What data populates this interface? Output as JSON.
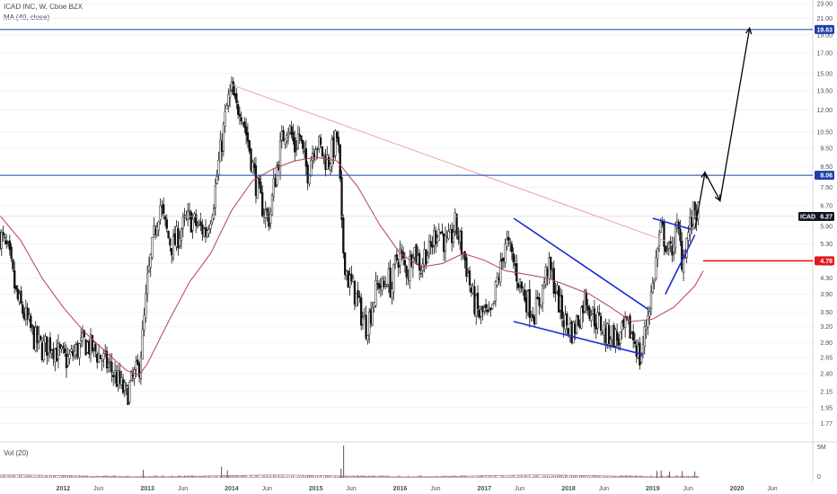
{
  "header": {
    "symbol_line": "ICAD INC, W, Cboe BZX",
    "ma_line": "MA (40, close)",
    "volume_line": "Vol (20)"
  },
  "chart_data": {
    "type": "candlestick",
    "title": "ICAD INC, W, Cboe BZX",
    "y_scale": "log",
    "ylim": [
      1.6,
      23.5
    ],
    "x_range": [
      2011.25,
      2020.9
    ],
    "y_ticks": [
      "23.00",
      "21.00",
      "19.00",
      "17.00",
      "15.00",
      "13.50",
      "12.00",
      "10.50",
      "9.50",
      "8.50",
      "7.50",
      "6.70",
      "5.90",
      "5.30",
      "4.70",
      "4.30",
      "3.90",
      "3.50",
      "3.20",
      "2.90",
      "2.65",
      "2.40",
      "2.15",
      "1.95",
      "1.77"
    ],
    "x_ticks": [
      {
        "label": "2012",
        "x": 2012.0,
        "year": true
      },
      {
        "label": "Jun",
        "x": 2012.42,
        "year": false
      },
      {
        "label": "2013",
        "x": 2013.0,
        "year": true
      },
      {
        "label": "Jun",
        "x": 2013.42,
        "year": false
      },
      {
        "label": "2014",
        "x": 2014.0,
        "year": true
      },
      {
        "label": "Jun",
        "x": 2014.42,
        "year": false
      },
      {
        "label": "2015",
        "x": 2015.0,
        "year": true
      },
      {
        "label": "Jun",
        "x": 2015.42,
        "year": false
      },
      {
        "label": "2016",
        "x": 2016.0,
        "year": true
      },
      {
        "label": "Jun",
        "x": 2016.42,
        "year": false
      },
      {
        "label": "2017",
        "x": 2017.0,
        "year": true
      },
      {
        "label": "Jun",
        "x": 2017.42,
        "year": false
      },
      {
        "label": "2018",
        "x": 2018.0,
        "year": true
      },
      {
        "label": "Jun",
        "x": 2018.42,
        "year": false
      },
      {
        "label": "2019",
        "x": 2019.0,
        "year": true
      },
      {
        "label": "Jun",
        "x": 2019.42,
        "year": false
      },
      {
        "label": "2020",
        "x": 2020.0,
        "year": true
      },
      {
        "label": "Jun",
        "x": 2020.42,
        "year": false
      }
    ],
    "price_path": [
      [
        2011.25,
        5.6
      ],
      [
        2011.35,
        5.0
      ],
      [
        2011.45,
        3.8
      ],
      [
        2011.55,
        3.4
      ],
      [
        2011.65,
        3.0
      ],
      [
        2011.75,
        2.8
      ],
      [
        2011.85,
        2.9
      ],
      [
        2011.95,
        2.7
      ],
      [
        2012.05,
        2.6
      ],
      [
        2012.15,
        2.75
      ],
      [
        2012.25,
        2.9
      ],
      [
        2012.35,
        2.8
      ],
      [
        2012.45,
        2.65
      ],
      [
        2012.55,
        2.5
      ],
      [
        2012.65,
        2.3
      ],
      [
        2012.75,
        2.1
      ],
      [
        2012.8,
        2.25
      ],
      [
        2012.9,
        2.5
      ],
      [
        2012.95,
        3.1
      ],
      [
        2013.0,
        4.2
      ],
      [
        2013.05,
        5.0
      ],
      [
        2013.1,
        6.0
      ],
      [
        2013.15,
        6.8
      ],
      [
        2013.2,
        6.0
      ],
      [
        2013.25,
        5.5
      ],
      [
        2013.3,
        5.2
      ],
      [
        2013.4,
        5.8
      ],
      [
        2013.5,
        6.2
      ],
      [
        2013.6,
        5.9
      ],
      [
        2013.7,
        5.7
      ],
      [
        2013.75,
        6.4
      ],
      [
        2013.8,
        7.2
      ],
      [
        2013.85,
        8.8
      ],
      [
        2013.9,
        10.5
      ],
      [
        2013.95,
        12.5
      ],
      [
        2014.0,
        13.5
      ],
      [
        2014.05,
        12.0
      ],
      [
        2014.1,
        12.5
      ],
      [
        2014.15,
        11.0
      ],
      [
        2014.2,
        9.8
      ],
      [
        2014.25,
        8.5
      ],
      [
        2014.3,
        7.5
      ],
      [
        2014.35,
        6.8
      ],
      [
        2014.4,
        6.4
      ],
      [
        2014.45,
        6.2
      ],
      [
        2014.5,
        7.5
      ],
      [
        2014.55,
        8.8
      ],
      [
        2014.6,
        10.0
      ],
      [
        2014.65,
        11.0
      ],
      [
        2014.7,
        10.5
      ],
      [
        2014.75,
        9.5
      ],
      [
        2014.8,
        10.5
      ],
      [
        2014.85,
        9.0
      ],
      [
        2014.9,
        8.2
      ],
      [
        2014.95,
        9.2
      ],
      [
        2015.0,
        10.0
      ],
      [
        2015.05,
        9.5
      ],
      [
        2015.1,
        9.0
      ],
      [
        2015.15,
        8.8
      ],
      [
        2015.2,
        9.4
      ],
      [
        2015.25,
        10.2
      ],
      [
        2015.28,
        8.8
      ],
      [
        2015.3,
        6.0
      ],
      [
        2015.33,
        5.0
      ],
      [
        2015.38,
        4.3
      ],
      [
        2015.45,
        4.0
      ],
      [
        2015.5,
        3.7
      ],
      [
        2015.55,
        3.4
      ],
      [
        2015.6,
        3.2
      ],
      [
        2015.65,
        3.5
      ],
      [
        2015.7,
        3.9
      ],
      [
        2015.75,
        4.2
      ],
      [
        2015.8,
        4.0
      ],
      [
        2015.85,
        4.4
      ],
      [
        2015.9,
        4.0
      ],
      [
        2015.95,
        4.8
      ],
      [
        2016.0,
        5.0
      ],
      [
        2016.05,
        4.6
      ],
      [
        2016.1,
        4.5
      ],
      [
        2016.15,
        5.3
      ],
      [
        2016.2,
        4.9
      ],
      [
        2016.25,
        4.6
      ],
      [
        2016.3,
        5.1
      ],
      [
        2016.35,
        5.0
      ],
      [
        2016.4,
        5.5
      ],
      [
        2016.45,
        5.9
      ],
      [
        2016.5,
        5.6
      ],
      [
        2016.55,
        5.2
      ],
      [
        2016.6,
        5.4
      ],
      [
        2016.65,
        6.0
      ],
      [
        2016.7,
        5.5
      ],
      [
        2016.75,
        5.0
      ],
      [
        2016.8,
        4.5
      ],
      [
        2016.85,
        3.9
      ],
      [
        2016.9,
        3.6
      ],
      [
        2016.95,
        3.4
      ],
      [
        2017.0,
        3.5
      ],
      [
        2017.05,
        3.3
      ],
      [
        2017.1,
        3.5
      ],
      [
        2017.15,
        4.2
      ],
      [
        2017.2,
        4.6
      ],
      [
        2017.25,
        5.4
      ],
      [
        2017.3,
        5.1
      ],
      [
        2017.35,
        4.7
      ],
      [
        2017.4,
        4.3
      ],
      [
        2017.45,
        4.0
      ],
      [
        2017.5,
        3.8
      ],
      [
        2017.55,
        3.6
      ],
      [
        2017.6,
        3.5
      ],
      [
        2017.65,
        3.7
      ],
      [
        2017.7,
        4.1
      ],
      [
        2017.75,
        4.6
      ],
      [
        2017.8,
        4.4
      ],
      [
        2017.85,
        4.0
      ],
      [
        2017.9,
        3.6
      ],
      [
        2017.95,
        3.3
      ],
      [
        2018.0,
        3.2
      ],
      [
        2018.05,
        3.1
      ],
      [
        2018.1,
        3.3
      ],
      [
        2018.15,
        3.5
      ],
      [
        2018.2,
        3.9
      ],
      [
        2018.25,
        3.6
      ],
      [
        2018.3,
        3.4
      ],
      [
        2018.35,
        3.3
      ],
      [
        2018.4,
        3.2
      ],
      [
        2018.45,
        3.0
      ],
      [
        2018.5,
        3.1
      ],
      [
        2018.55,
        3.0
      ],
      [
        2018.6,
        2.95
      ],
      [
        2018.65,
        3.1
      ],
      [
        2018.7,
        3.2
      ],
      [
        2018.75,
        3.05
      ],
      [
        2018.8,
        2.9
      ],
      [
        2018.85,
        2.6
      ],
      [
        2018.9,
        3.0
      ],
      [
        2018.95,
        3.6
      ],
      [
        2019.0,
        4.1
      ],
      [
        2019.05,
        5.0
      ],
      [
        2019.1,
        5.8
      ],
      [
        2019.15,
        5.4
      ],
      [
        2019.2,
        4.9
      ],
      [
        2019.25,
        5.5
      ],
      [
        2019.3,
        5.8
      ],
      [
        2019.35,
        4.8
      ],
      [
        2019.4,
        5.4
      ],
      [
        2019.45,
        6.0
      ],
      [
        2019.5,
        6.6
      ],
      [
        2019.55,
        6.27
      ]
    ],
    "ma_path": [
      [
        2011.25,
        6.3
      ],
      [
        2011.5,
        5.4
      ],
      [
        2011.75,
        4.3
      ],
      [
        2012.0,
        3.6
      ],
      [
        2012.25,
        3.1
      ],
      [
        2012.5,
        2.75
      ],
      [
        2012.75,
        2.45
      ],
      [
        2012.9,
        2.38
      ],
      [
        2013.0,
        2.55
      ],
      [
        2013.25,
        3.3
      ],
      [
        2013.5,
        4.2
      ],
      [
        2013.75,
        5.0
      ],
      [
        2014.0,
        6.5
      ],
      [
        2014.25,
        7.8
      ],
      [
        2014.5,
        8.4
      ],
      [
        2014.75,
        8.8
      ],
      [
        2015.0,
        9.0
      ],
      [
        2015.25,
        8.8
      ],
      [
        2015.5,
        7.5
      ],
      [
        2015.75,
        6.0
      ],
      [
        2016.0,
        5.0
      ],
      [
        2016.25,
        4.6
      ],
      [
        2016.5,
        4.7
      ],
      [
        2016.75,
        5.0
      ],
      [
        2017.0,
        4.8
      ],
      [
        2017.25,
        4.5
      ],
      [
        2017.5,
        4.4
      ],
      [
        2017.75,
        4.3
      ],
      [
        2018.0,
        4.1
      ],
      [
        2018.25,
        3.9
      ],
      [
        2018.5,
        3.6
      ],
      [
        2018.75,
        3.3
      ],
      [
        2019.0,
        3.35
      ],
      [
        2019.25,
        3.6
      ],
      [
        2019.5,
        4.1
      ],
      [
        2019.6,
        4.5
      ]
    ],
    "volume_levels": {
      "max": 5.5
    },
    "volume_axis_labels": [
      "5M",
      "0"
    ],
    "volume_spikes": [
      {
        "x": 2015.33,
        "v": 5.2
      },
      {
        "x": 2013.88,
        "v": 1.8
      },
      {
        "x": 2013.95,
        "v": 1.2
      },
      {
        "x": 2015.3,
        "v": 1.5
      },
      {
        "x": 2012.95,
        "v": 1.3
      },
      {
        "x": 2019.05,
        "v": 1.1
      },
      {
        "x": 2019.1,
        "v": 1.2
      },
      {
        "x": 2019.2,
        "v": 1.0
      },
      {
        "x": 2019.35,
        "v": 1.1
      },
      {
        "x": 2019.5,
        "v": 1.0
      }
    ],
    "annotations": {
      "downtrend_line": {
        "from": [
          2014.0,
          14.0
        ],
        "to": [
          2019.15,
          5.4
        ],
        "color": "#f0a0a8"
      },
      "wedge_upper": {
        "from": [
          2017.35,
          6.2
        ],
        "to": [
          2018.95,
          3.55
        ],
        "color": "#1a2bd6"
      },
      "wedge_lower": {
        "from": [
          2017.35,
          3.3
        ],
        "to": [
          2018.88,
          2.7
        ],
        "color": "#1a2bd6"
      },
      "flag_upper": {
        "from": [
          2019.0,
          6.2
        ],
        "to": [
          2019.45,
          5.8
        ],
        "color": "#1a2bd6"
      },
      "flag_lower": {
        "from": [
          2019.15,
          3.9
        ],
        "to": [
          2019.5,
          5.6
        ],
        "color": "#1a2bd6"
      },
      "projection": [
        [
          2019.5,
          5.8
        ],
        [
          2019.62,
          8.2
        ],
        [
          2019.8,
          6.9
        ],
        [
          2020.15,
          19.8
        ]
      ],
      "hline_top": 19.63,
      "hline_mid": 8.06,
      "red_level": {
        "from": 2019.6,
        "y": 4.78
      },
      "last_price_line": 6.27
    },
    "price_tags": [
      {
        "label": "19.63",
        "y": 19.63,
        "color": "#1e3fa8",
        "text_color": "#ffffff"
      },
      {
        "label": "8.06",
        "y": 8.06,
        "color": "#1e3fa8",
        "text_color": "#ffffff"
      },
      {
        "label": "6.27",
        "y": 6.27,
        "color": "#131722",
        "text_color": "#ffffff",
        "symbol": "ICAD"
      },
      {
        "label": "4.78",
        "y": 4.78,
        "color": "#e31919",
        "text_color": "#ffffff"
      }
    ],
    "colors": {
      "candles": "#111111",
      "ma": "#b5434a",
      "hline": "#1e3fa8",
      "wedge": "#1a2bd6",
      "arrow": "#000000",
      "red": "#e31919",
      "grid": "#eeeeee",
      "axis_text": "#4a4d56"
    }
  }
}
